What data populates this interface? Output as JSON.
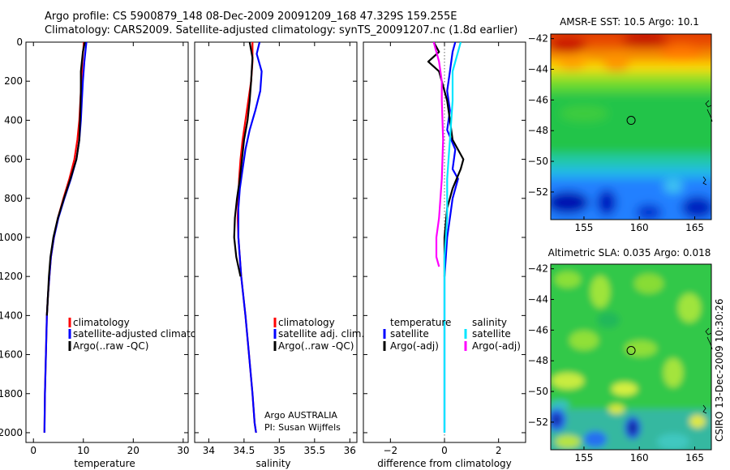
{
  "header": {
    "line1": "Argo profile: CS 5900879_148 08-Dec-2009 20091209_168 47.329S 159.255E",
    "line2": "Climatology: CARS2009. Satellite-adjusted climatology: synTS_20091207.nc (1.8d earlier)"
  },
  "colors": {
    "climatology": "#ff0000",
    "satellite": "#0000ff",
    "argo": "#000000",
    "sal_satellite": "#00e5ff",
    "sal_argo": "#ff00ff"
  },
  "chart_data": [
    {
      "type": "line",
      "id": "temperature",
      "xlabel": "temperature",
      "xlim": [
        -1.5,
        31
      ],
      "xticks": [
        0,
        10,
        20,
        30
      ],
      "ylim": [
        2050,
        0
      ],
      "yticks": [
        0,
        200,
        400,
        600,
        800,
        1000,
        1200,
        1400,
        1600,
        1800,
        2000
      ],
      "legend": [
        "climatology",
        "satellite-adjusted climatology",
        "Argo(..raw -QC)"
      ],
      "series": [
        {
          "name": "climatology",
          "color": "#ff0000",
          "x": [
            10.1,
            9.8,
            9.6,
            9.4,
            9.2,
            8.8,
            8.2,
            7.2,
            6.0,
            4.9,
            4.1,
            3.5,
            3.2,
            2.9,
            2.7,
            2.5,
            2.3,
            2.2
          ],
          "y": [
            0,
            100,
            200,
            300,
            400,
            500,
            600,
            700,
            800,
            900,
            1000,
            1100,
            1200,
            1300,
            1400,
            1600,
            1800,
            2000
          ]
        },
        {
          "name": "satellite-adjusted climatology",
          "color": "#0000ff",
          "x": [
            10.6,
            10.2,
            9.9,
            9.7,
            9.5,
            9.2,
            8.6,
            7.5,
            6.2,
            5.0,
            4.1,
            3.5,
            3.2,
            2.9,
            2.7,
            2.5,
            2.3,
            2.2
          ],
          "y": [
            0,
            100,
            200,
            300,
            400,
            500,
            600,
            700,
            800,
            900,
            1000,
            1100,
            1200,
            1300,
            1400,
            1600,
            1800,
            2000
          ]
        },
        {
          "name": "Argo(..raw -QC)",
          "color": "#000000",
          "x": [
            10.3,
            9.9,
            9.5,
            9.5,
            9.4,
            9.2,
            8.6,
            7.4,
            6.1,
            4.9,
            4.0,
            3.4,
            3.1,
            2.9,
            2.7
          ],
          "y": [
            0,
            50,
            150,
            250,
            350,
            500,
            600,
            700,
            800,
            900,
            1000,
            1100,
            1200,
            1300,
            1400
          ]
        }
      ]
    },
    {
      "type": "line",
      "id": "salinity",
      "xlabel": "salinity",
      "xlim": [
        33.8,
        36.1
      ],
      "xticks": [
        34,
        34.5,
        35,
        35.5,
        36
      ],
      "ylim": [
        2050,
        0
      ],
      "legend": [
        "climatology",
        "satellite adj. clim.",
        "Argo(..raw -QC)"
      ],
      "annotation": [
        "Argo AUSTRALIA",
        "PI: Susan Wijffels"
      ],
      "series": [
        {
          "name": "climatology",
          "color": "#ff0000",
          "x": [
            34.62,
            34.62,
            34.6,
            34.56,
            34.52,
            34.48,
            34.45,
            34.43,
            34.42,
            34.41,
            34.42,
            34.46,
            34.52,
            34.57,
            34.62,
            34.65,
            34.67
          ],
          "y": [
            0,
            100,
            200,
            300,
            400,
            500,
            600,
            700,
            800,
            900,
            1000,
            1200,
            1400,
            1600,
            1800,
            1950,
            2000
          ]
        },
        {
          "name": "satellite adj. clim.",
          "color": "#0000ff",
          "x": [
            34.72,
            34.68,
            34.75,
            34.73,
            34.66,
            34.58,
            34.52,
            34.48,
            34.44,
            34.42,
            34.42,
            34.46,
            34.52,
            34.57,
            34.62,
            34.65,
            34.67
          ],
          "y": [
            0,
            60,
            150,
            250,
            350,
            450,
            550,
            650,
            750,
            850,
            1000,
            1200,
            1400,
            1600,
            1800,
            1950,
            2000
          ]
        },
        {
          "name": "Argo(..raw -QC)",
          "color": "#000000",
          "x": [
            34.58,
            34.62,
            34.6,
            34.58,
            34.55,
            34.5,
            34.47,
            34.44,
            34.4,
            34.37,
            34.36,
            34.39,
            34.45
          ],
          "y": [
            0,
            80,
            200,
            300,
            400,
            500,
            600,
            700,
            800,
            900,
            1000,
            1100,
            1200
          ]
        }
      ]
    },
    {
      "type": "line",
      "id": "difference",
      "xlabel": "difference from climatology",
      "xlim": [
        -3,
        3
      ],
      "xticks": [
        -2,
        0,
        2
      ],
      "ylim": [
        2050,
        0
      ],
      "legend": [
        {
          "group": "temperature",
          "items": [
            "satellite",
            "Argo(-adj)"
          ]
        },
        {
          "group": "salinity",
          "items": [
            "satellite",
            "Argo(-adj)"
          ]
        }
      ],
      "series": [
        {
          "name": "temperature satellite",
          "color": "#0000ff",
          "x": [
            0.4,
            0.3,
            0.2,
            0.1,
            0.2,
            0.1,
            0.4,
            0.3,
            0.5,
            0.3,
            0.2,
            0.1,
            0.0,
            0.0,
            0.0,
            0.0,
            0.0,
            0.0
          ],
          "y": [
            0,
            50,
            150,
            250,
            350,
            450,
            550,
            650,
            700,
            800,
            900,
            1000,
            1200,
            1400,
            1600,
            1800,
            1900,
            2000
          ]
        },
        {
          "name": "temperature Argo(-adj)",
          "color": "#000000",
          "x": [
            -0.4,
            -0.2,
            -0.6,
            -0.2,
            0.1,
            0.2,
            0.3,
            0.7,
            0.6,
            0.3,
            0.1,
            0.0,
            0.0
          ],
          "y": [
            0,
            50,
            100,
            150,
            300,
            400,
            500,
            600,
            650,
            750,
            850,
            1000,
            1200
          ]
        },
        {
          "name": "salinity satellite",
          "color": "#00e5ff",
          "x": [
            0.6,
            0.5,
            0.3,
            0.3,
            0.2,
            0.1,
            0.1,
            0.0,
            0.0,
            0.0,
            0.0,
            0.0
          ],
          "y": [
            0,
            50,
            150,
            300,
            500,
            700,
            900,
            1100,
            1300,
            1500,
            1700,
            2000
          ]
        },
        {
          "name": "salinity Argo(-adj)",
          "color": "#ff00ff",
          "x": [
            -0.4,
            -0.2,
            -0.1,
            -0.1,
            -0.05,
            -0.1,
            -0.2,
            -0.3,
            -0.3,
            -0.2
          ],
          "y": [
            0,
            100,
            200,
            300,
            500,
            700,
            900,
            1000,
            1100,
            1150
          ]
        }
      ]
    },
    {
      "type": "heatmap",
      "id": "sst_map",
      "title": "AMSR-E SST: 10.5 Argo: 10.1",
      "xlim": [
        152,
        166.5
      ],
      "xticks": [
        155,
        160,
        165
      ],
      "ylim": [
        -53.8,
        -41.7
      ],
      "yticks": [
        -42,
        -44,
        -46,
        -48,
        -50,
        -52
      ],
      "profile_location": {
        "lon": 159.255,
        "lat": -47.329
      }
    },
    {
      "type": "heatmap",
      "id": "sla_map",
      "title": "Altimetric SLA: 0.035 Argo: 0.018",
      "xlim": [
        152,
        166.5
      ],
      "xticks": [
        155,
        160,
        165
      ],
      "ylim": [
        -53.8,
        -41.7
      ],
      "yticks": [
        -42,
        -44,
        -46,
        -48,
        -50,
        -52
      ],
      "profile_location": {
        "lon": 159.255,
        "lat": -47.329
      }
    }
  ],
  "credit": "CSIRO 13-Dec-2009 10:30:26"
}
